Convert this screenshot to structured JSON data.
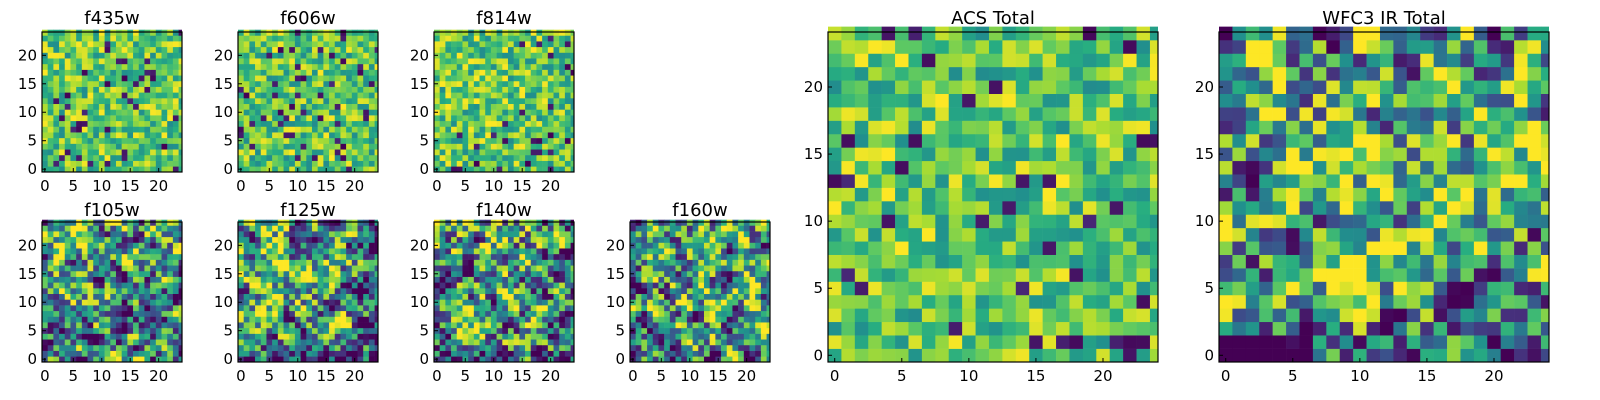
{
  "chart_data": [
    {
      "type": "heatmap",
      "title": "f435w",
      "xlim": [
        0,
        24
      ],
      "ylim": [
        0,
        24
      ],
      "x_ticks": [
        0,
        5,
        10,
        15,
        20
      ],
      "y_ticks": [
        0,
        5,
        10,
        15,
        20
      ],
      "colormap": "viridis",
      "grid": false,
      "pattern": "uniform noise, mostly green/yellow with scattered purple pixels"
    },
    {
      "type": "heatmap",
      "title": "f606w",
      "xlim": [
        0,
        24
      ],
      "ylim": [
        0,
        24
      ],
      "x_ticks": [
        0,
        5,
        10,
        15,
        20
      ],
      "y_ticks": [
        0,
        5,
        10,
        15,
        20
      ],
      "colormap": "viridis",
      "grid": false,
      "pattern": "uniform noise"
    },
    {
      "type": "heatmap",
      "title": "f814w",
      "xlim": [
        0,
        24
      ],
      "ylim": [
        0,
        24
      ],
      "x_ticks": [
        0,
        5,
        10,
        15,
        20
      ],
      "y_ticks": [
        0,
        5,
        10,
        15,
        20
      ],
      "colormap": "viridis",
      "grid": false,
      "pattern": "noise, brighter toward bottom-left"
    },
    {
      "type": "heatmap",
      "title": "f105w",
      "xlim": [
        0,
        24
      ],
      "ylim": [
        0,
        24
      ],
      "x_ticks": [
        0,
        5,
        10,
        15,
        20
      ],
      "y_ticks": [
        0,
        5,
        10,
        15,
        20
      ],
      "colormap": "viridis",
      "grid": false,
      "pattern": "smoothed noise, bright bottom-left"
    },
    {
      "type": "heatmap",
      "title": "f125w",
      "xlim": [
        0,
        24
      ],
      "ylim": [
        0,
        24
      ],
      "x_ticks": [
        0,
        5,
        10,
        15,
        20
      ],
      "y_ticks": [
        0,
        5,
        10,
        15,
        20
      ],
      "colormap": "viridis",
      "grid": false,
      "pattern": "smoothed noise, bright center-bottom"
    },
    {
      "type": "heatmap",
      "title": "f140w",
      "xlim": [
        0,
        24
      ],
      "ylim": [
        0,
        24
      ],
      "x_ticks": [
        0,
        5,
        10,
        15,
        20
      ],
      "y_ticks": [
        0,
        5,
        10,
        15,
        20
      ],
      "colormap": "viridis",
      "grid": false,
      "pattern": "smoothed noise, bright bottom-left"
    },
    {
      "type": "heatmap",
      "title": "f160w",
      "xlim": [
        0,
        24
      ],
      "ylim": [
        0,
        24
      ],
      "x_ticks": [
        0,
        5,
        10,
        15,
        20
      ],
      "y_ticks": [
        0,
        5,
        10,
        15,
        20
      ],
      "colormap": "viridis",
      "grid": false,
      "pattern": "smoothed noise, bright center"
    },
    {
      "type": "heatmap",
      "title": "ACS Total",
      "xlim": [
        0,
        24
      ],
      "ylim": [
        0,
        24
      ],
      "x_ticks": [
        0,
        5,
        10,
        15,
        20
      ],
      "y_ticks": [
        0,
        5,
        10,
        15,
        20
      ],
      "colormap": "viridis",
      "grid": false,
      "pattern": "noise, mostly green/yellow with scattered purple pixels"
    },
    {
      "type": "heatmap",
      "title": "WFC3 IR Total",
      "xlim": [
        0,
        24
      ],
      "ylim": [
        0,
        24
      ],
      "x_ticks": [
        0,
        5,
        10,
        15,
        20
      ],
      "y_ticks": [
        0,
        5,
        10,
        15,
        20
      ],
      "colormap": "viridis",
      "grid": false,
      "pattern": "smoothed noise, bright center/bottom, dark patch at left edge"
    }
  ]
}
